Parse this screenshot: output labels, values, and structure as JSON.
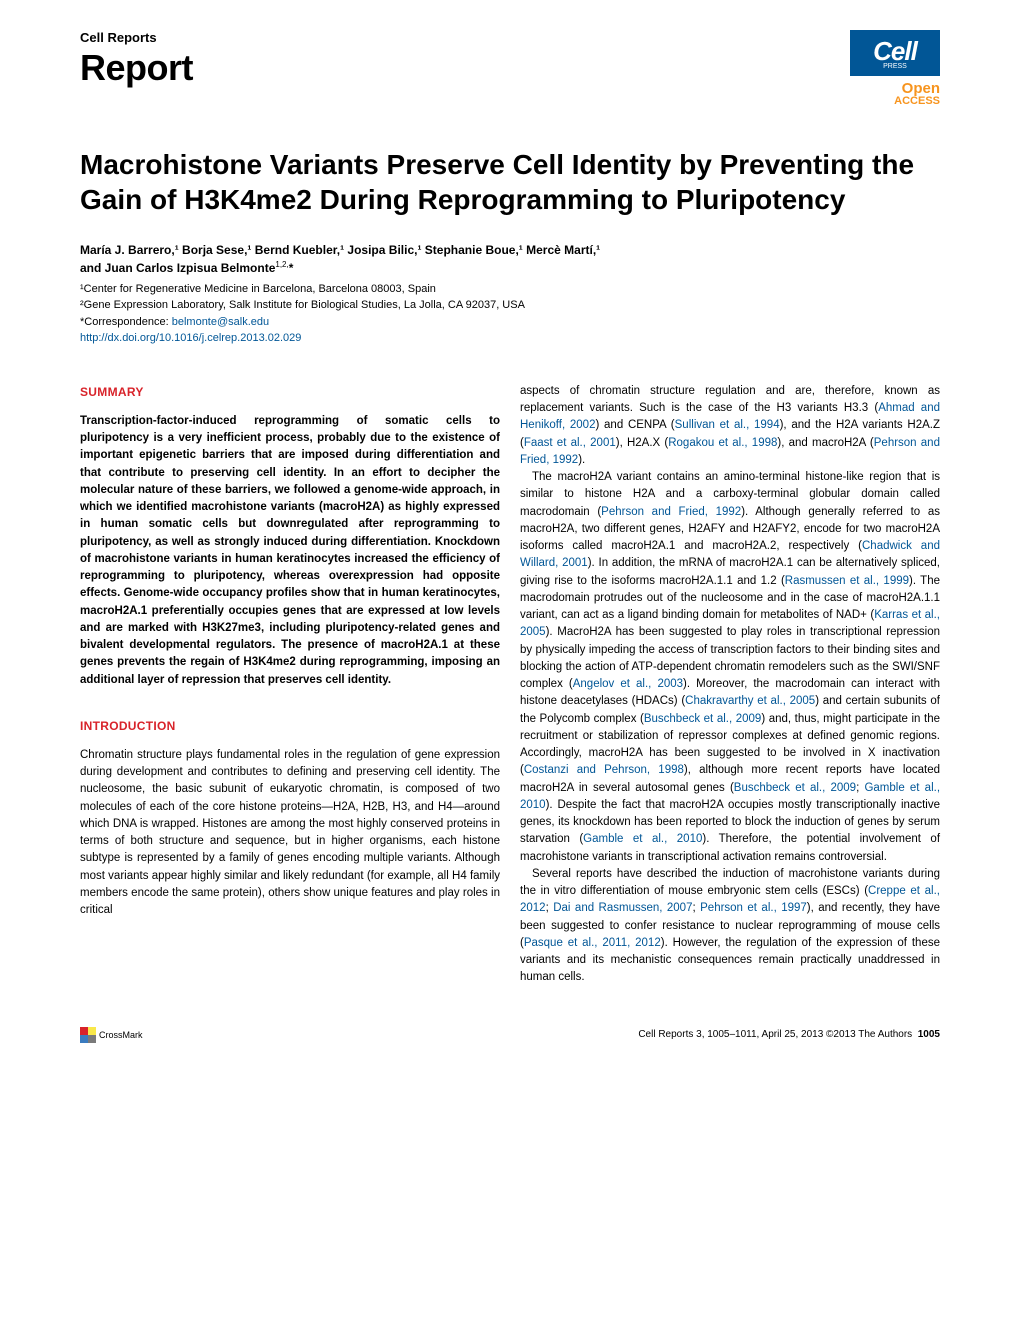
{
  "header": {
    "journal": "Cell Reports",
    "article_type": "Report",
    "open": "Open",
    "access": "ACCESS",
    "cell_logo": "Cell",
    "press": "PRESS"
  },
  "title": "Macrohistone Variants Preserve Cell Identity by Preventing the Gain of H3K4me2 During Reprogramming to Pluripotency",
  "authors_line1": "María J. Barrero,¹ Borja Sese,¹ Bernd Kuebler,¹ Josipa Bilic,¹ Stephanie Boue,¹ Mercè Martí,¹",
  "authors_line2": "and Juan Carlos Izpisua Belmonte",
  "authors_sup2": "1,2,",
  "authors_star": "*",
  "affil1": "¹Center for Regenerative Medicine in Barcelona, Barcelona 08003, Spain",
  "affil2": "²Gene Expression Laboratory, Salk Institute for Biological Studies, La Jolla, CA 92037, USA",
  "corr_label": "*Correspondence: ",
  "corr_email": "belmonte@salk.edu",
  "doi": "http://dx.doi.org/10.1016/j.celrep.2013.02.029",
  "summary_heading": "SUMMARY",
  "summary_text": "Transcription-factor-induced reprogramming of somatic cells to pluripotency is a very inefficient process, probably due to the existence of important epigenetic barriers that are imposed during differentiation and that contribute to preserving cell identity. In an effort to decipher the molecular nature of these barriers, we followed a genome-wide approach, in which we identified macrohistone variants (macroH2A) as highly expressed in human somatic cells but downregulated after reprogramming to pluripotency, as well as strongly induced during differentiation. Knockdown of macrohistone variants in human keratinocytes increased the efficiency of reprogramming to pluripotency, whereas overexpression had opposite effects. Genome-wide occupancy profiles show that in human keratinocytes, macroH2A.1 preferentially occupies genes that are expressed at low levels and are marked with H3K27me3, including pluripotency-related genes and bivalent developmental regulators. The presence of macroH2A.1 at these genes prevents the regain of H3K4me2 during reprogramming, imposing an additional layer of repression that preserves cell identity.",
  "intro_heading": "INTRODUCTION",
  "intro_text": "Chromatin structure plays fundamental roles in the regulation of gene expression during development and contributes to defining and preserving cell identity. The nucleosome, the basic subunit of eukaryotic chromatin, is composed of two molecules of each of the core histone proteins—H2A, H2B, H3, and H4—around which DNA is wrapped. Histones are among the most highly conserved proteins in terms of both structure and sequence, but in higher organisms, each histone subtype is represented by a family of genes encoding multiple variants. Although most variants appear highly similar and likely redundant (for example, all H4 family members encode the same protein), others show unique features and play roles in critical",
  "col2_p1_a": "aspects of chromatin structure regulation and are, therefore, known as replacement variants. Such is the case of the H3 variants H3.3 (",
  "col2_p1_r1": "Ahmad and Henikoff, 2002",
  "col2_p1_b": ") and CENPA (",
  "col2_p1_r2": "Sullivan et al., 1994",
  "col2_p1_c": "), and the H2A variants H2A.Z (",
  "col2_p1_r3": "Faast et al., 2001",
  "col2_p1_d": "), H2A.X (",
  "col2_p1_r4": "Rogakou et al., 1998",
  "col2_p1_e": "), and macroH2A (",
  "col2_p1_r5": "Pehrson and Fried, 1992",
  "col2_p1_f": ").",
  "col2_p2_a": "The macroH2A variant contains an amino-terminal histone-like region that is similar to histone H2A and a carboxy-terminal globular domain called macrodomain (",
  "col2_p2_r1": "Pehrson and Fried, 1992",
  "col2_p2_b": "). Although generally referred to as macroH2A, two different genes, H2AFY and H2AFY2, encode for two macroH2A isoforms called macroH2A.1 and macroH2A.2, respectively (",
  "col2_p2_r2": "Chadwick and Willard, 2001",
  "col2_p2_c": "). In addition, the mRNA of macroH2A.1 can be alternatively spliced, giving rise to the isoforms macroH2A.1.1 and 1.2 (",
  "col2_p2_r3": "Rasmussen et al., 1999",
  "col2_p2_d": "). The macrodomain protrudes out of the nucleosome and in the case of macroH2A.1.1 variant, can act as a ligand binding domain for metabolites of NAD+ (",
  "col2_p2_r4": "Karras et al., 2005",
  "col2_p2_e": "). MacroH2A has been suggested to play roles in transcriptional repression by physically impeding the access of transcription factors to their binding sites and blocking the action of ATP-dependent chromatin remodelers such as the SWI/SNF complex (",
  "col2_p2_r5": "Angelov et al., 2003",
  "col2_p2_f": "). Moreover, the macrodomain can interact with histone deacetylases (HDACs) (",
  "col2_p2_r6": "Chakravarthy et al., 2005",
  "col2_p2_g": ") and certain subunits of the Polycomb complex (",
  "col2_p2_r7": "Buschbeck et al., 2009",
  "col2_p2_h": ") and, thus, might participate in the recruitment or stabilization of repressor complexes at defined genomic regions. Accordingly, macroH2A has been suggested to be involved in X inactivation (",
  "col2_p2_r8": "Costanzi and Pehrson, 1998",
  "col2_p2_i": "), although more recent reports have located macroH2A in several autosomal genes (",
  "col2_p2_r9": "Buschbeck et al., 2009",
  "col2_p2_j": "; ",
  "col2_p2_r10": "Gamble et al., 2010",
  "col2_p2_k": "). Despite the fact that macroH2A occupies mostly transcriptionally inactive genes, its knockdown has been reported to block the induction of genes by serum starvation (",
  "col2_p2_r11": "Gamble et al., 2010",
  "col2_p2_l": "). Therefore, the potential involvement of macrohistone variants in transcriptional activation remains controversial.",
  "col2_p3_a": "Several reports have described the induction of macrohistone variants during the in vitro differentiation of mouse embryonic stem cells (ESCs) (",
  "col2_p3_r1": "Creppe et al., 2012",
  "col2_p3_b": "; ",
  "col2_p3_r2": "Dai and Rasmussen, 2007",
  "col2_p3_c": "; ",
  "col2_p3_r3": "Pehrson et al., 1997",
  "col2_p3_d": "), and recently, they have been suggested to confer resistance to nuclear reprogramming of mouse cells (",
  "col2_p3_r4": "Pasque et al., 2011, 2012",
  "col2_p3_e": "). However, the regulation of the expression of these variants and its mechanistic consequences remain practically unaddressed in human cells.",
  "footer": {
    "crossmark": "CrossMark",
    "citation": "Cell Reports 3, 1005–1011, April 25, 2013 ©2013 The Authors",
    "page": "1005"
  }
}
